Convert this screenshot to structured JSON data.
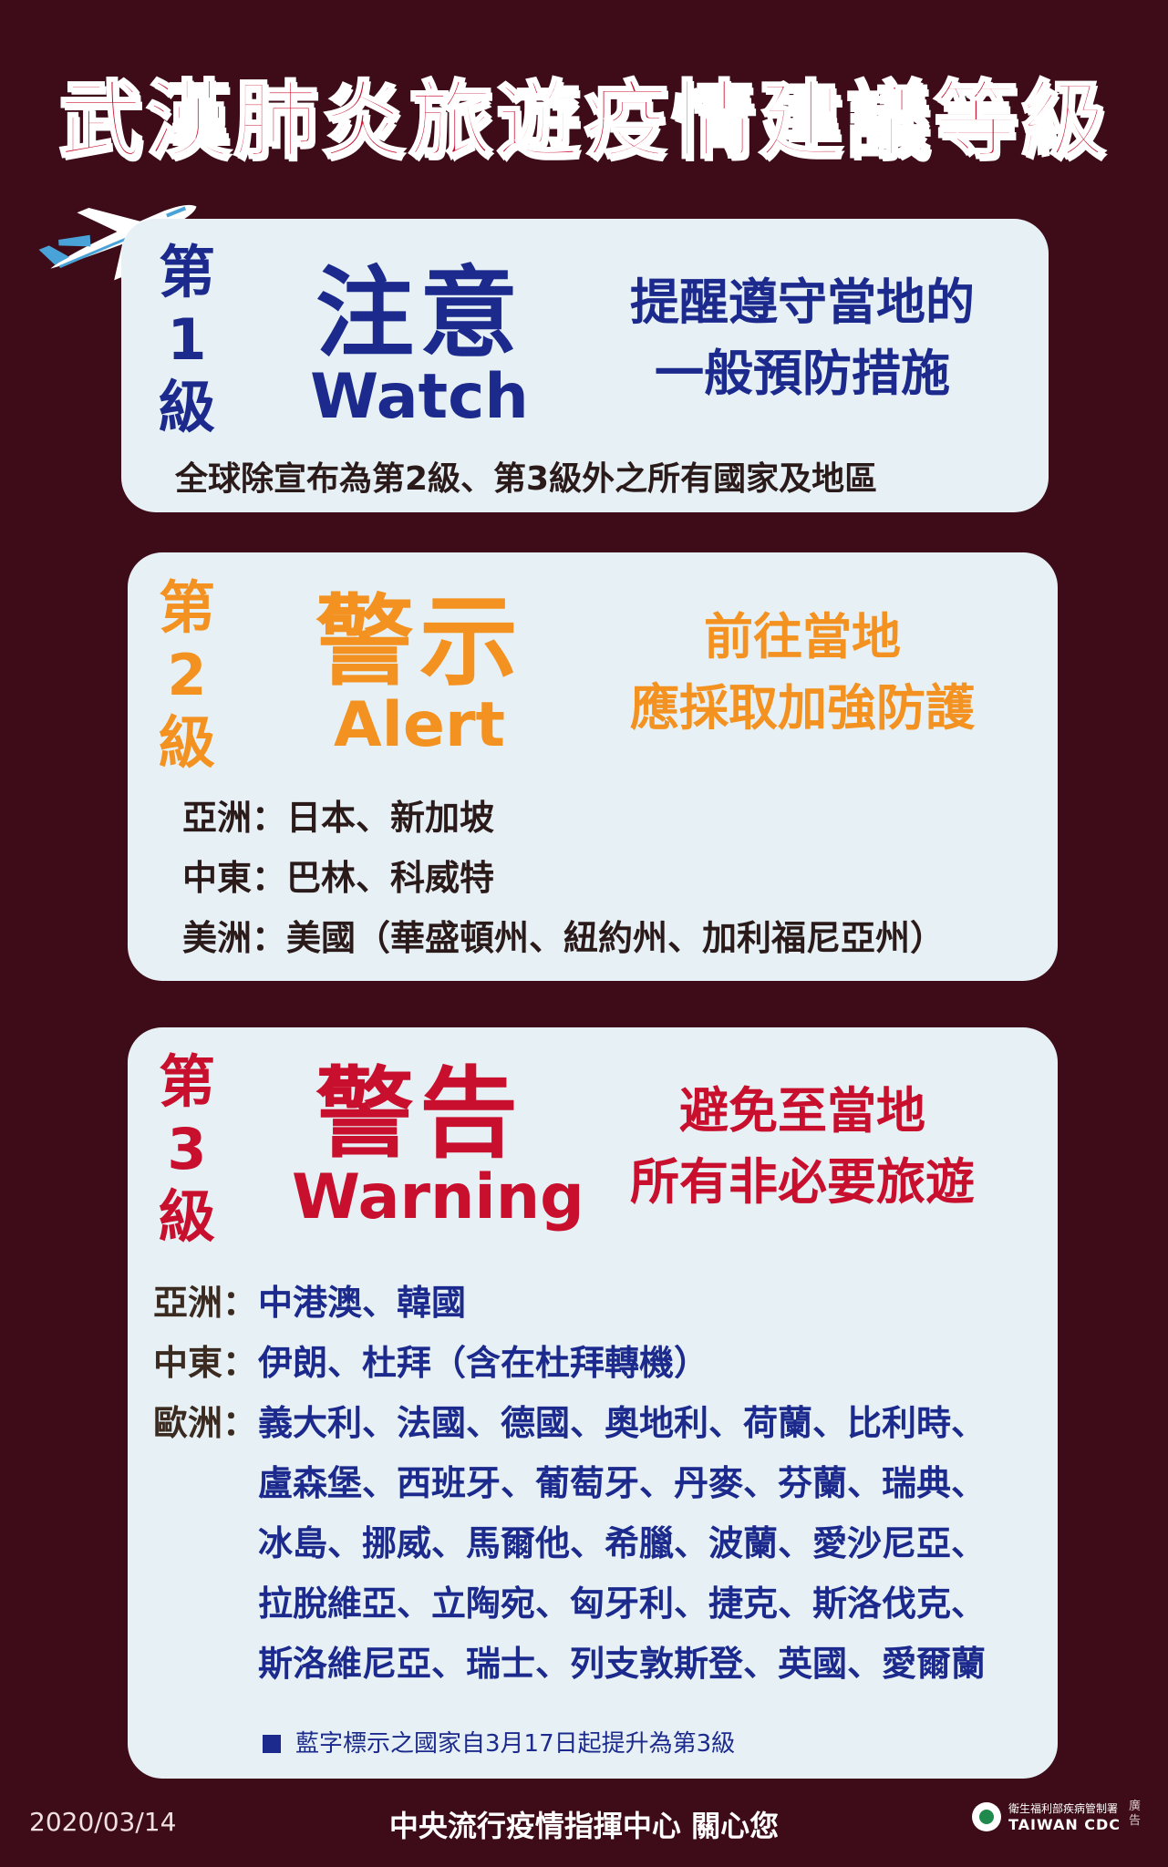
{
  "title": "武漢肺炎旅遊疫情建議等級",
  "colors": {
    "background": "#3d0c18",
    "card": "#e7f1f5",
    "level1": "#1b2a8c",
    "level2": "#f39220",
    "level3": "#c8102e"
  },
  "levels": [
    {
      "ordinal_chars": [
        "第",
        "1",
        "級"
      ],
      "name_zh": "注意",
      "name_en": "Watch",
      "advice": [
        "提醒遵守當地的",
        "一般預防措施"
      ],
      "scope": "全球除宣布為第2級、第3級外之所有國家及地區"
    },
    {
      "ordinal_chars": [
        "第",
        "2",
        "級"
      ],
      "name_zh": "警示",
      "name_en": "Alert",
      "advice": [
        "前往當地",
        "應採取加強防護"
      ],
      "regions": [
        {
          "label": "亞洲：",
          "value": "日本、新加坡"
        },
        {
          "label": "中東：",
          "value": "巴林、科威特"
        },
        {
          "label": "美洲：",
          "value": "美國（華盛頓州、紐約州、加利福尼亞州）"
        }
      ]
    },
    {
      "ordinal_chars": [
        "第",
        "3",
        "級"
      ],
      "name_zh": "警告",
      "name_en": "Warning",
      "advice": [
        "避免至當地",
        "所有非必要旅遊"
      ],
      "regions": [
        {
          "label": "亞洲：",
          "lines": [
            "中港澳、韓國"
          ]
        },
        {
          "label": "中東：",
          "lines": [
            "伊朗、杜拜（含在杜拜轉機）"
          ]
        },
        {
          "label": "歐洲：",
          "lines": [
            "義大利、法國、德國、奧地利、荷蘭、比利時、",
            "盧森堡、西班牙、葡萄牙、丹麥、芬蘭、瑞典、",
            "冰島、挪威、馬爾他、希臘、波蘭、愛沙尼亞、",
            "拉脫維亞、立陶宛、匈牙利、捷克、斯洛伐克、",
            "斯洛維尼亞、瑞士、列支敦斯登、英國、愛爾蘭"
          ]
        }
      ],
      "note": "藍字標示之國家自3月17日起提升為第3級"
    }
  ],
  "footer": {
    "date": "2020/03/14",
    "center": "中央流行疫情指揮中心  關心您",
    "logo_line1": "衛生福利部疾病管制署",
    "logo_line2": "TAIWAN CDC",
    "ad_mark": "廣告"
  }
}
